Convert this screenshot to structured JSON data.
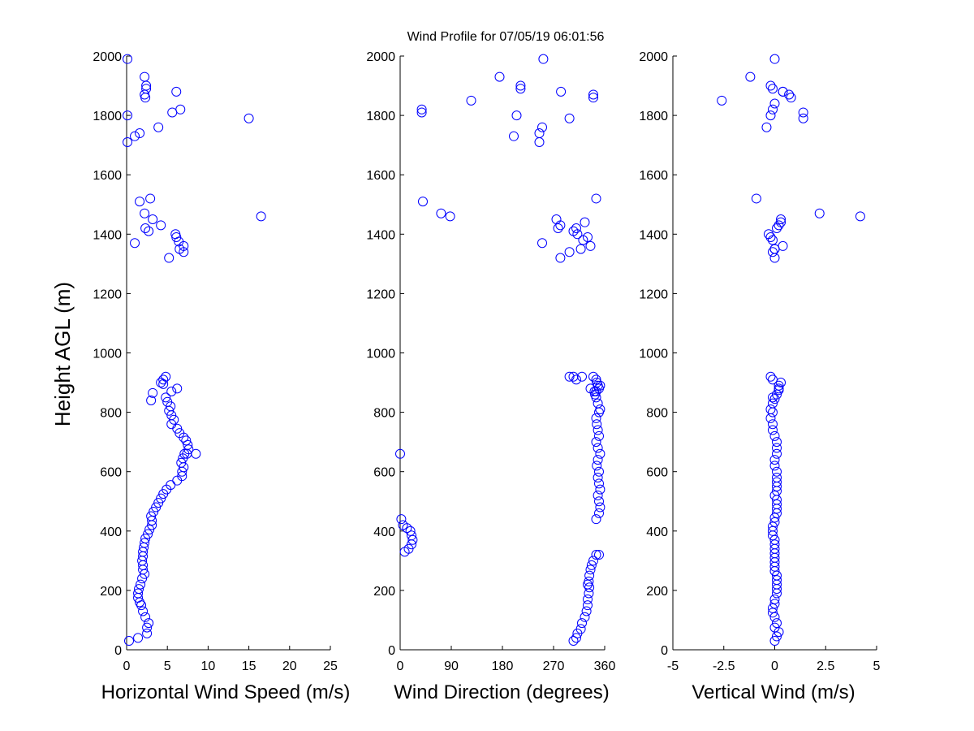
{
  "title": "Wind Profile for  07/05/19 06:01:56",
  "ylabel": "Height AGL (m)",
  "colors": {
    "marker": "#0000ff",
    "axes": "#000000",
    "background": "#ffffff"
  },
  "chart_data": [
    {
      "type": "scatter",
      "name": "horizontal-wind-speed",
      "xlabel": "Horizontal Wind Speed (m/s)",
      "ylabel": "Height AGL (m)",
      "xlim": [
        0,
        25
      ],
      "ylim": [
        0,
        2000
      ],
      "xticks": [
        0,
        5,
        10,
        15,
        20,
        25
      ],
      "xtick_labels": [
        "0",
        "5",
        "10",
        "15",
        "20",
        "25"
      ],
      "yticks": [
        0,
        200,
        400,
        600,
        800,
        1000,
        1200,
        1400,
        1600,
        1800,
        2000
      ],
      "ytick_labels": [
        "0",
        "200",
        "400",
        "600",
        "800",
        "1000",
        "1200",
        "1400",
        "1600",
        "1800",
        "2000"
      ],
      "grid": false,
      "marker": "open-circle",
      "x": [
        0.3,
        1.4,
        2.5,
        2.5,
        2.7,
        2.3,
        2.0,
        1.8,
        1.6,
        1.4,
        1.4,
        1.5,
        1.7,
        1.9,
        2.2,
        2.0,
        2.0,
        1.9,
        2.0,
        2.0,
        2.1,
        2.2,
        2.3,
        2.6,
        2.8,
        3.1,
        3.1,
        3.0,
        3.3,
        3.6,
        3.9,
        4.2,
        4.5,
        4.9,
        5.4,
        6.2,
        6.8,
        6.8,
        7.0,
        6.7,
        6.9,
        7.1,
        7.4,
        7.6,
        7.5,
        7.3,
        8.5,
        7.0,
        6.5,
        6.2,
        5.5,
        5.8,
        5.5,
        5.2,
        5.4,
        5.0,
        4.8,
        5.5,
        3.2,
        6.2,
        3.0,
        4.2,
        4.5,
        4.5,
        4.8,
        5.2,
        7.0,
        6.5,
        7.0,
        6.4,
        6.1,
        6.0,
        1.0,
        2.7,
        2.3,
        3.2,
        4.2,
        2.2,
        16.5,
        1.6,
        2.9,
        0.1,
        1.0,
        1.6,
        3.9,
        15.0,
        0.1,
        5.6,
        6.6,
        2.3,
        2.2,
        2.4,
        2.4,
        6.1,
        2.2,
        0.1
      ],
      "y": [
        30,
        40,
        55,
        75,
        90,
        110,
        130,
        150,
        160,
        175,
        190,
        205,
        220,
        240,
        255,
        270,
        285,
        300,
        315,
        330,
        345,
        360,
        375,
        390,
        405,
        420,
        435,
        450,
        465,
        480,
        495,
        510,
        525,
        540,
        555,
        570,
        585,
        600,
        615,
        630,
        645,
        660,
        660,
        675,
        690,
        705,
        660,
        715,
        730,
        745,
        760,
        775,
        790,
        805,
        820,
        835,
        850,
        870,
        865,
        880,
        840,
        900,
        910,
        895,
        920,
        1320,
        1340,
        1350,
        1360,
        1375,
        1390,
        1400,
        1370,
        1410,
        1420,
        1450,
        1430,
        1470,
        1460,
        1510,
        1520,
        1710,
        1730,
        1740,
        1760,
        1790,
        1800,
        1810,
        1820,
        1860,
        1870,
        1890,
        1900,
        1880,
        1930,
        1990
      ]
    },
    {
      "type": "scatter",
      "name": "wind-direction",
      "xlabel": "Wind Direction (degrees)",
      "ylabel": "",
      "xlim": [
        0,
        360
      ],
      "ylim": [
        0,
        2000
      ],
      "xticks": [
        0,
        90,
        180,
        270,
        360
      ],
      "xtick_labels": [
        "0",
        "90",
        "180",
        "270",
        "360"
      ],
      "yticks": [
        0,
        200,
        400,
        600,
        800,
        1000,
        1200,
        1400,
        1600,
        1800,
        2000
      ],
      "ytick_labels": [
        "0",
        "200",
        "400",
        "600",
        "800",
        "1000",
        "1200",
        "1400",
        "1600",
        "1800",
        "2000"
      ],
      "grid": false,
      "marker": "open-circle",
      "x": [
        305,
        310,
        312,
        318,
        320,
        325,
        328,
        330,
        330,
        332,
        333,
        332,
        330,
        333,
        335,
        337,
        340,
        345,
        350,
        8,
        15,
        20,
        22,
        20,
        18,
        12,
        5,
        2,
        345,
        350,
        352,
        350,
        348,
        352,
        350,
        348,
        350,
        346,
        348,
        352,
        348,
        345,
        350,
        348,
        346,
        345,
        350,
        352,
        348,
        345,
        343,
        342,
        345,
        350,
        352,
        346,
        340,
        348,
        345,
        320,
        310,
        305,
        298,
        335,
        0,
        282,
        298,
        318,
        335,
        322,
        330,
        312,
        305,
        250,
        310,
        278,
        275,
        282,
        325,
        40,
        72,
        88,
        345,
        245,
        200,
        245,
        250,
        298,
        205,
        38,
        38,
        340,
        340,
        212,
        212,
        283,
        175,
        125,
        252
      ],
      "y": [
        30,
        40,
        55,
        70,
        90,
        110,
        130,
        150,
        170,
        190,
        210,
        230,
        220,
        250,
        270,
        285,
        300,
        320,
        320,
        330,
        340,
        355,
        370,
        385,
        400,
        410,
        420,
        440,
        440,
        460,
        480,
        500,
        520,
        540,
        560,
        580,
        600,
        620,
        640,
        660,
        680,
        700,
        720,
        740,
        760,
        780,
        800,
        810,
        830,
        850,
        860,
        870,
        870,
        880,
        890,
        900,
        920,
        890,
        910,
        920,
        910,
        920,
        920,
        880,
        660,
        1320,
        1340,
        1350,
        1360,
        1380,
        1390,
        1400,
        1410,
        1370,
        1420,
        1420,
        1450,
        1430,
        1440,
        1510,
        1470,
        1460,
        1520,
        1710,
        1730,
        1740,
        1760,
        1790,
        1800,
        1810,
        1820,
        1860,
        1870,
        1890,
        1900,
        1880,
        1930,
        1850,
        1990
      ]
    },
    {
      "type": "scatter",
      "name": "vertical-wind",
      "xlabel": "Vertical Wind (m/s)",
      "ylabel": "",
      "xlim": [
        -5,
        5
      ],
      "ylim": [
        0,
        2000
      ],
      "xticks": [
        -5,
        -2.5,
        0,
        2.5,
        5
      ],
      "xtick_labels": [
        "-5",
        "-2.5",
        "0",
        "2.5",
        "5"
      ],
      "yticks": [
        0,
        200,
        400,
        600,
        800,
        1000,
        1200,
        1400,
        1600,
        1800,
        2000
      ],
      "ytick_labels": [
        "0",
        "200",
        "400",
        "600",
        "800",
        "1000",
        "1200",
        "1400",
        "1600",
        "1800",
        "2000"
      ],
      "grid": false,
      "marker": "open-circle",
      "x": [
        0.0,
        0.1,
        0.2,
        0.0,
        0.1,
        0.0,
        -0.1,
        -0.1,
        0.0,
        0.0,
        0.1,
        0.1,
        0.1,
        0.1,
        0.1,
        0.0,
        0.0,
        0.0,
        0.0,
        0.0,
        0.0,
        0.0,
        0.0,
        -0.1,
        -0.1,
        -0.1,
        0.0,
        0.0,
        0.1,
        0.1,
        0.1,
        0.1,
        0.0,
        0.1,
        0.1,
        0.1,
        0.1,
        0.1,
        0.0,
        0.0,
        0.1,
        0.1,
        0.1,
        0.0,
        -0.1,
        -0.1,
        -0.2,
        -0.1,
        -0.2,
        -0.1,
        0.0,
        0.1,
        0.2,
        0.2,
        0.3,
        -0.1,
        -0.2,
        -0.1,
        0.2,
        0.0,
        -0.1,
        0.0,
        0.4,
        0.0,
        -0.1,
        -0.2,
        -0.3,
        0.1,
        0.2,
        0.3,
        0.3,
        2.2,
        4.2,
        -0.9,
        -0.4,
        -0.2,
        -0.1,
        0.0,
        0.4,
        1.4,
        1.4,
        -2.6,
        0.8,
        0.7,
        0.4,
        -0.2,
        -0.1,
        0.0,
        -1.2
      ],
      "y": [
        30,
        45,
        60,
        75,
        90,
        110,
        125,
        140,
        155,
        170,
        190,
        205,
        220,
        235,
        250,
        265,
        280,
        295,
        310,
        325,
        340,
        355,
        370,
        385,
        400,
        415,
        430,
        445,
        460,
        475,
        490,
        505,
        520,
        535,
        550,
        565,
        580,
        600,
        620,
        640,
        660,
        680,
        700,
        720,
        740,
        760,
        780,
        800,
        810,
        830,
        845,
        860,
        875,
        890,
        900,
        910,
        920,
        850,
        880,
        1320,
        1340,
        1350,
        1360,
        1350,
        1380,
        1390,
        1400,
        1420,
        1430,
        1440,
        1450,
        1470,
        1460,
        1520,
        1760,
        1800,
        1820,
        1840,
        1880,
        1810,
        1790,
        1850,
        1860,
        1870,
        1880,
        1900,
        1890,
        1990,
        1930
      ]
    }
  ]
}
